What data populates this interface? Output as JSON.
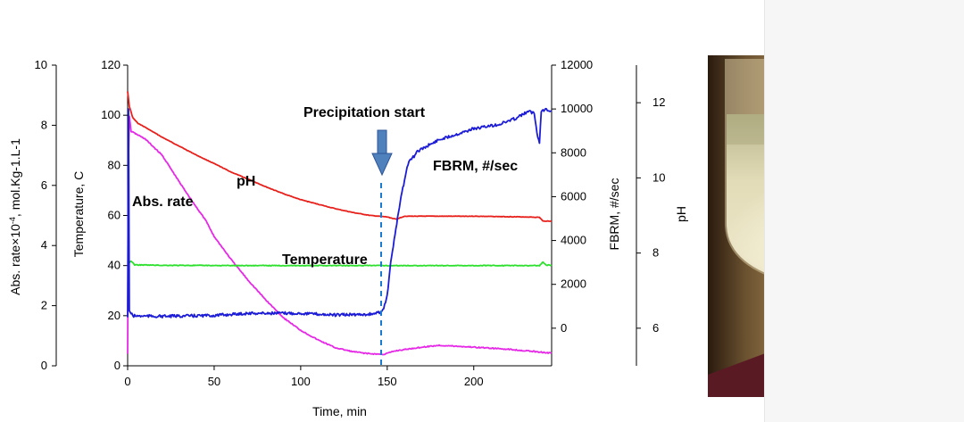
{
  "chart_data": {
    "type": "line",
    "x": {
      "label": "Time, min",
      "range": [
        0,
        245
      ],
      "ticks": [
        0,
        50,
        100,
        150,
        200
      ],
      "tick_labels": [
        "0",
        "50",
        "100",
        "150",
        "200"
      ]
    },
    "axes": {
      "abs_rate": {
        "label": "Abs. rate×10",
        "label_sup": "-4",
        "label_rest": ", mol.Kg-1.L-1",
        "range": [
          0,
          10
        ],
        "tick_labels": [
          "0",
          "2",
          "4",
          "6",
          "8",
          "10"
        ]
      },
      "temperature": {
        "label": "Temperature, C",
        "range": [
          0,
          120
        ],
        "tick_labels": [
          "0",
          "20",
          "40",
          "60",
          "80",
          "100",
          "120"
        ]
      },
      "fbrm": {
        "label": "FBRM, #/sec",
        "range": [
          -2000,
          12000
        ],
        "tick_labels": [
          "0",
          "2000",
          "4000",
          "6000",
          "8000",
          "10000",
          "12000"
        ]
      },
      "ph": {
        "label": "pH",
        "range": [
          5.0,
          13.0
        ],
        "tick_labels": [
          "6",
          "8",
          "10",
          "12"
        ]
      }
    },
    "series": [
      {
        "name": "pH",
        "axis": "ph",
        "color": "#e8201b",
        "points": [
          [
            0,
            12.3
          ],
          [
            1,
            11.9
          ],
          [
            3,
            11.6
          ],
          [
            6,
            11.45
          ],
          [
            10,
            11.35
          ],
          [
            20,
            11.08
          ],
          [
            30,
            10.84
          ],
          [
            40,
            10.6
          ],
          [
            50,
            10.38
          ],
          [
            60,
            10.15
          ],
          [
            70,
            9.96
          ],
          [
            80,
            9.76
          ],
          [
            90,
            9.58
          ],
          [
            100,
            9.42
          ],
          [
            110,
            9.3
          ],
          [
            120,
            9.18
          ],
          [
            130,
            9.08
          ],
          [
            140,
            9.0
          ],
          [
            150,
            8.96
          ],
          [
            155,
            8.9
          ],
          [
            160,
            8.98
          ],
          [
            170,
            8.98
          ],
          [
            200,
            8.98
          ],
          [
            230,
            8.96
          ],
          [
            238,
            8.95
          ],
          [
            240,
            8.85
          ],
          [
            245,
            8.85
          ]
        ]
      },
      {
        "name": "Abs. rate",
        "axis": "abs_rate",
        "color": "#e629e6",
        "points": [
          [
            0,
            0.4
          ],
          [
            0.5,
            7.0
          ],
          [
            1,
            8.3
          ],
          [
            2,
            7.8
          ],
          [
            10,
            7.55
          ],
          [
            20,
            7.0
          ],
          [
            30,
            6.1
          ],
          [
            40,
            5.25
          ],
          [
            45,
            4.85
          ],
          [
            50,
            4.3
          ],
          [
            60,
            3.52
          ],
          [
            70,
            2.82
          ],
          [
            80,
            2.18
          ],
          [
            90,
            1.6
          ],
          [
            100,
            1.18
          ],
          [
            110,
            0.86
          ],
          [
            120,
            0.6
          ],
          [
            130,
            0.47
          ],
          [
            140,
            0.4
          ],
          [
            148,
            0.38
          ],
          [
            155,
            0.5
          ],
          [
            170,
            0.62
          ],
          [
            180,
            0.68
          ],
          [
            200,
            0.62
          ],
          [
            220,
            0.55
          ],
          [
            240,
            0.45
          ],
          [
            245,
            0.42
          ]
        ]
      },
      {
        "name": "Temperature",
        "axis": "temperature",
        "color": "#2ee02e",
        "points": [
          [
            0,
            40.5
          ],
          [
            2,
            41.8
          ],
          [
            4,
            40.3
          ],
          [
            20,
            40.1
          ],
          [
            60,
            40.0
          ],
          [
            100,
            40.0
          ],
          [
            150,
            40.0
          ],
          [
            200,
            40.0
          ],
          [
            238,
            40.0
          ],
          [
            240,
            41.3
          ],
          [
            242,
            40.2
          ],
          [
            245,
            40.1
          ]
        ]
      },
      {
        "name": "FBRM, #/sec",
        "axis": "fbrm",
        "color": "#1c1cd6",
        "points": [
          [
            0,
            500
          ],
          [
            0.5,
            10000
          ],
          [
            1,
            800
          ],
          [
            3,
            560
          ],
          [
            20,
            540
          ],
          [
            50,
            580
          ],
          [
            70,
            680
          ],
          [
            100,
            680
          ],
          [
            120,
            600
          ],
          [
            140,
            640
          ],
          [
            145,
            700
          ],
          [
            148,
            900
          ],
          [
            150,
            1500
          ],
          [
            152,
            3000
          ],
          [
            155,
            4500
          ],
          [
            158,
            6000
          ],
          [
            162,
            7500
          ],
          [
            168,
            8100
          ],
          [
            180,
            8600
          ],
          [
            200,
            9100
          ],
          [
            215,
            9300
          ],
          [
            225,
            9600
          ],
          [
            232,
            9900
          ],
          [
            235,
            9800
          ],
          [
            237,
            8700
          ],
          [
            238,
            8500
          ],
          [
            239,
            9900
          ],
          [
            242,
            10000
          ],
          [
            245,
            9900
          ]
        ]
      }
    ],
    "annotations": [
      {
        "text": "Precipitation start",
        "x": 147
      },
      {
        "text": "pH"
      },
      {
        "text": "Abs. rate"
      },
      {
        "text": "Temperature"
      },
      {
        "text": "FBRM, #/sec"
      }
    ],
    "grid": false,
    "legend": "none"
  }
}
